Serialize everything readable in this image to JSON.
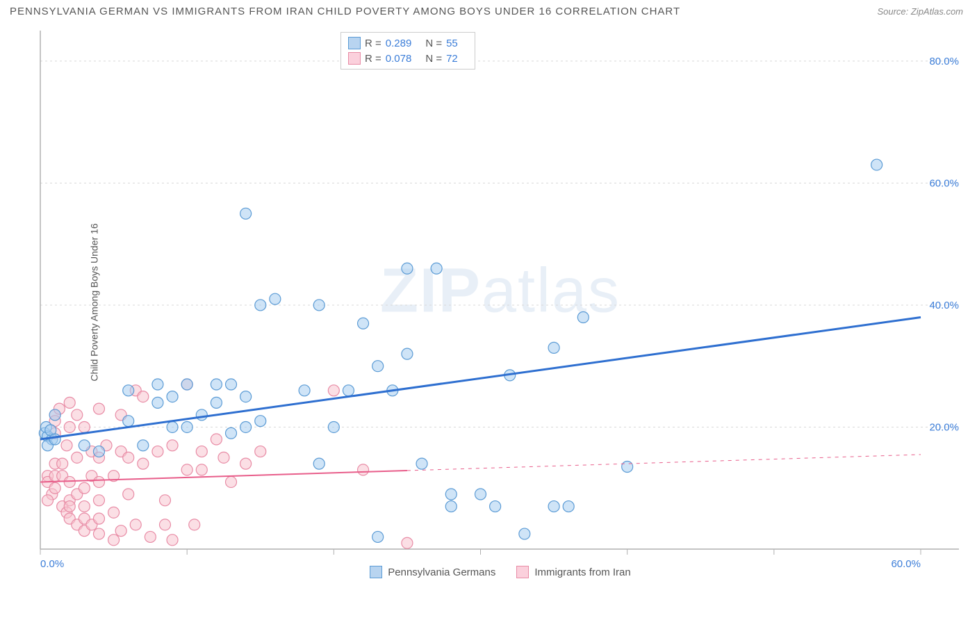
{
  "title": "PENNSYLVANIA GERMAN VS IMMIGRANTS FROM IRAN CHILD POVERTY AMONG BOYS UNDER 16 CORRELATION CHART",
  "source": "Source: ZipAtlas.com",
  "y_axis_label": "Child Poverty Among Boys Under 16",
  "watermark": "ZIPatlas",
  "chart": {
    "type": "scatter",
    "x_domain": [
      0,
      60
    ],
    "y_domain": [
      0,
      85
    ],
    "background_color": "#ffffff",
    "grid_color": "#d8d8d8",
    "axis_color": "#b0b0b0",
    "tick_font_size": 15,
    "x_ticks": [
      0,
      10,
      20,
      30,
      40,
      50,
      60
    ],
    "x_tick_labels": {
      "0": "0.0%",
      "60": "60.0%"
    },
    "y_ticks": [
      0,
      20,
      40,
      60,
      80
    ],
    "y_tick_labels": {
      "20": "20.0%",
      "40": "40.0%",
      "60": "60.0%",
      "80": "80.0%"
    },
    "tick_label_color": "#3b7dd8",
    "marker_radius": 8,
    "marker_opacity": 0.55,
    "series": [
      {
        "name": "Pennsylvania Germans",
        "color_fill": "#a8cdf0",
        "color_stroke": "#5b9bd5",
        "swatch_fill": "#b8d4f0",
        "swatch_stroke": "#5b9bd5",
        "stats": {
          "R": "0.289",
          "N": "55"
        },
        "trend": {
          "x1": 0,
          "y1": 18,
          "x2": 60,
          "y2": 38,
          "color": "#2e6fd0",
          "width": 3,
          "solid_until": 60
        },
        "points": [
          [
            0.3,
            19
          ],
          [
            0.5,
            18.5
          ],
          [
            0.4,
            20
          ],
          [
            0.8,
            18
          ],
          [
            0.7,
            19.5
          ],
          [
            0.5,
            17
          ],
          [
            1,
            22
          ],
          [
            1,
            18
          ],
          [
            3,
            17
          ],
          [
            4,
            16
          ],
          [
            6,
            21
          ],
          [
            6,
            26
          ],
          [
            7,
            17
          ],
          [
            8,
            24
          ],
          [
            8,
            27
          ],
          [
            9,
            20
          ],
          [
            9,
            25
          ],
          [
            10,
            20
          ],
          [
            10,
            27
          ],
          [
            11,
            22
          ],
          [
            12,
            24
          ],
          [
            12,
            27
          ],
          [
            13,
            19
          ],
          [
            13,
            27
          ],
          [
            14,
            20
          ],
          [
            14,
            25
          ],
          [
            14,
            55
          ],
          [
            15,
            21
          ],
          [
            15,
            40
          ],
          [
            16,
            41
          ],
          [
            18,
            26
          ],
          [
            19,
            14
          ],
          [
            19,
            40
          ],
          [
            20,
            20
          ],
          [
            21,
            26
          ],
          [
            22,
            37
          ],
          [
            23,
            2
          ],
          [
            23,
            30
          ],
          [
            24,
            26
          ],
          [
            25,
            32
          ],
          [
            25,
            46
          ],
          [
            26,
            14
          ],
          [
            27,
            46
          ],
          [
            28,
            7
          ],
          [
            28,
            9
          ],
          [
            30,
            9
          ],
          [
            31,
            7
          ],
          [
            32,
            28.5
          ],
          [
            33,
            2.5
          ],
          [
            35,
            7
          ],
          [
            35,
            33
          ],
          [
            36,
            7
          ],
          [
            37,
            38
          ],
          [
            40,
            13.5
          ],
          [
            57,
            63
          ]
        ]
      },
      {
        "name": "Immigrants from Iran",
        "color_fill": "#f7c5d0",
        "color_stroke": "#e88ba5",
        "swatch_fill": "#fbd0dc",
        "swatch_stroke": "#e88ba5",
        "stats": {
          "R": "0.078",
          "N": "72"
        },
        "trend": {
          "x1": 0,
          "y1": 11,
          "x2": 60,
          "y2": 15.5,
          "color": "#e85d8a",
          "width": 2,
          "solid_until": 25
        },
        "points": [
          [
            0.5,
            12
          ],
          [
            0.5,
            11
          ],
          [
            0.8,
            9
          ],
          [
            0.5,
            8
          ],
          [
            1,
            22
          ],
          [
            1,
            21
          ],
          [
            1,
            19
          ],
          [
            1,
            14
          ],
          [
            1,
            12
          ],
          [
            1,
            10
          ],
          [
            1.3,
            23
          ],
          [
            1.5,
            7
          ],
          [
            1.5,
            12
          ],
          [
            1.5,
            14
          ],
          [
            1.8,
            17
          ],
          [
            1.8,
            6
          ],
          [
            2,
            24
          ],
          [
            2,
            20
          ],
          [
            2,
            11
          ],
          [
            2,
            8
          ],
          [
            2,
            5
          ],
          [
            2,
            7
          ],
          [
            2.5,
            15
          ],
          [
            2.5,
            9
          ],
          [
            2.5,
            4
          ],
          [
            2.5,
            22
          ],
          [
            3,
            20
          ],
          [
            3,
            10
          ],
          [
            3,
            7
          ],
          [
            3,
            5
          ],
          [
            3,
            3
          ],
          [
            3.5,
            16
          ],
          [
            3.5,
            12
          ],
          [
            3.5,
            4
          ],
          [
            4,
            23
          ],
          [
            4,
            15
          ],
          [
            4,
            11
          ],
          [
            4,
            8
          ],
          [
            4,
            5
          ],
          [
            4,
            2.5
          ],
          [
            4.5,
            17
          ],
          [
            5,
            1.5
          ],
          [
            5,
            6
          ],
          [
            5,
            12
          ],
          [
            5.5,
            22
          ],
          [
            5.5,
            16
          ],
          [
            5.5,
            3
          ],
          [
            6,
            9
          ],
          [
            6,
            15
          ],
          [
            6.5,
            26
          ],
          [
            6.5,
            4
          ],
          [
            7,
            14
          ],
          [
            7,
            25
          ],
          [
            7.5,
            2
          ],
          [
            8,
            16
          ],
          [
            8.5,
            4
          ],
          [
            8.5,
            8
          ],
          [
            9,
            1.5
          ],
          [
            9,
            17
          ],
          [
            10,
            27
          ],
          [
            10,
            13
          ],
          [
            10.5,
            4
          ],
          [
            11,
            16
          ],
          [
            11,
            13
          ],
          [
            12,
            18
          ],
          [
            12.5,
            15
          ],
          [
            13,
            11
          ],
          [
            14,
            14
          ],
          [
            15,
            16
          ],
          [
            20,
            26
          ],
          [
            22,
            13
          ],
          [
            25,
            1
          ]
        ]
      }
    ]
  },
  "bottom_legend": [
    {
      "label": "Pennsylvania Germans",
      "fill": "#b8d4f0",
      "stroke": "#5b9bd5"
    },
    {
      "label": "Immigrants from Iran",
      "fill": "#fbd0dc",
      "stroke": "#e88ba5"
    }
  ]
}
